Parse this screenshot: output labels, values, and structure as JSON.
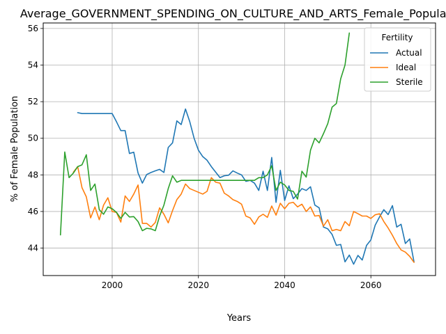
{
  "chart_data": {
    "type": "line",
    "title": "Average_GOVERNMENT_SPENDING_ON_CULTURE_AND_ARTS_Female_Population",
    "xlabel": "Years",
    "ylabel": "% of Female Population",
    "xlim": [
      1984,
      2075
    ],
    "ylim": [
      42.5,
      56.3
    ],
    "xticks": [
      2000,
      2020,
      2040,
      2060
    ],
    "yticks": [
      44,
      46,
      48,
      50,
      52,
      54,
      56
    ],
    "grid": true,
    "legend": {
      "title": "Fertility",
      "placement": "top-right"
    },
    "series": [
      {
        "name": "Actual",
        "color": "#1f77b4",
        "x": [
          1992,
          1993,
          1994,
          1995,
          1996,
          1997,
          1998,
          1999,
          2000,
          2001,
          2002,
          2003,
          2004,
          2005,
          2006,
          2007,
          2008,
          2009,
          2010,
          2011,
          2012,
          2013,
          2014,
          2015,
          2016,
          2017,
          2018,
          2019,
          2020,
          2021,
          2022,
          2023,
          2024,
          2025,
          2026,
          2027,
          2028,
          2029,
          2030,
          2031,
          2032,
          2033,
          2034,
          2035,
          2036,
          2037,
          2038,
          2039,
          2040,
          2041,
          2042,
          2043,
          2044,
          2045,
          2046,
          2047,
          2048,
          2049,
          2050,
          2051,
          2052,
          2053,
          2054,
          2055,
          2056,
          2057,
          2058,
          2059,
          2060,
          2061,
          2062,
          2063,
          2064,
          2065,
          2066,
          2067,
          2068,
          2069,
          2070
        ],
        "y": [
          51.4,
          51.35,
          51.35,
          51.35,
          51.35,
          51.35,
          51.35,
          51.35,
          51.35,
          50.9,
          50.42,
          50.42,
          49.17,
          49.24,
          48.1,
          47.55,
          48.02,
          48.13,
          48.22,
          48.3,
          48.13,
          49.5,
          49.75,
          50.95,
          50.75,
          51.6,
          50.9,
          50.0,
          49.35,
          49.0,
          48.8,
          48.45,
          48.15,
          47.85,
          47.95,
          47.98,
          48.22,
          48.1,
          48.0,
          47.65,
          47.7,
          47.55,
          47.15,
          48.2,
          47.15,
          48.95,
          46.5,
          48.25,
          46.6,
          47.4,
          46.7,
          46.95,
          47.25,
          47.15,
          47.35,
          46.35,
          46.2,
          45.15,
          45.05,
          44.75,
          44.15,
          44.2,
          43.25,
          43.62,
          43.12,
          43.6,
          43.35,
          44.15,
          44.45,
          45.25,
          45.7,
          46.1,
          45.83,
          46.32,
          45.15,
          45.3,
          44.25,
          44.5,
          43.25
        ]
      },
      {
        "name": "Ideal",
        "color": "#ff7f0e",
        "x": [
          1991,
          1992,
          1993,
          1994,
          1995,
          1996,
          1997,
          1998,
          1999,
          2000,
          2001,
          2002,
          2003,
          2004,
          2005,
          2006,
          2007,
          2008,
          2009,
          2010,
          2011,
          2012,
          2013,
          2014,
          2015,
          2016,
          2017,
          2018,
          2019,
          2020,
          2021,
          2022,
          2023,
          2024,
          2025,
          2026,
          2027,
          2028,
          2029,
          2030,
          2031,
          2032,
          2033,
          2034,
          2035,
          2036,
          2037,
          2038,
          2039,
          2040,
          2041,
          2042,
          2043,
          2044,
          2045,
          2046,
          2047,
          2048,
          2049,
          2050,
          2051,
          2052,
          2053,
          2054,
          2055,
          2056,
          2057,
          2058,
          2059,
          2060,
          2061,
          2062,
          2063,
          2064,
          2065,
          2066,
          2067,
          2068,
          2069,
          2070
        ],
        "y": [
          48.15,
          48.45,
          47.3,
          46.8,
          45.65,
          46.25,
          45.55,
          46.35,
          46.75,
          46.0,
          45.95,
          45.42,
          46.85,
          46.55,
          46.95,
          47.45,
          45.35,
          45.35,
          45.15,
          45.4,
          46.2,
          45.85,
          45.38,
          46.05,
          46.65,
          46.95,
          47.5,
          47.25,
          47.15,
          47.05,
          46.95,
          47.1,
          47.85,
          47.6,
          47.55,
          47.0,
          46.85,
          46.65,
          46.55,
          46.4,
          45.75,
          45.65,
          45.3,
          45.7,
          45.85,
          45.68,
          46.3,
          45.8,
          46.45,
          46.15,
          46.45,
          46.5,
          46.25,
          46.4,
          46.0,
          46.25,
          45.75,
          45.78,
          45.2,
          45.55,
          44.95,
          45.02,
          44.95,
          45.45,
          45.22,
          46.0,
          45.88,
          45.75,
          45.75,
          45.62,
          45.82,
          45.88,
          45.45,
          45.1,
          44.7,
          44.25,
          43.9,
          43.78,
          43.55,
          43.22
        ]
      },
      {
        "name": "Sterile",
        "color": "#2ca02c",
        "x": [
          1988,
          1989,
          1990,
          1991,
          1992,
          1993,
          1994,
          1995,
          1996,
          1997,
          1998,
          1999,
          2000,
          2001,
          2002,
          2003,
          2004,
          2005,
          2006,
          2007,
          2008,
          2009,
          2010,
          2011,
          2012,
          2013,
          2014,
          2015,
          2016,
          2017,
          2018,
          2019,
          2020,
          2021,
          2022,
          2023,
          2024,
          2025,
          2026,
          2027,
          2028,
          2029,
          2030,
          2031,
          2032,
          2033,
          2034,
          2035,
          2036,
          2037,
          2038,
          2039,
          2040,
          2041,
          2042,
          2043,
          2044,
          2045,
          2046,
          2047,
          2048,
          2049,
          2050,
          2051,
          2052,
          2053,
          2054,
          2055
        ],
        "y": [
          44.72,
          49.25,
          47.85,
          48.1,
          48.45,
          48.55,
          49.1,
          47.15,
          47.5,
          46.1,
          45.85,
          46.25,
          46.15,
          45.95,
          45.62,
          45.95,
          45.7,
          45.72,
          45.45,
          44.95,
          45.08,
          45.05,
          44.95,
          45.75,
          46.35,
          47.25,
          47.95,
          47.6,
          47.7,
          47.7,
          47.7,
          47.7,
          47.7,
          47.7,
          47.7,
          47.7,
          47.7,
          47.7,
          47.7,
          47.7,
          47.7,
          47.7,
          47.7,
          47.7,
          47.7,
          47.7,
          47.85,
          47.85,
          48.0,
          48.5,
          47.15,
          47.6,
          47.45,
          47.15,
          47.1,
          46.68,
          48.2,
          47.88,
          49.35,
          50.0,
          49.75,
          50.25,
          50.8,
          51.7,
          51.9,
          53.25,
          54.0,
          55.75
        ]
      }
    ]
  }
}
